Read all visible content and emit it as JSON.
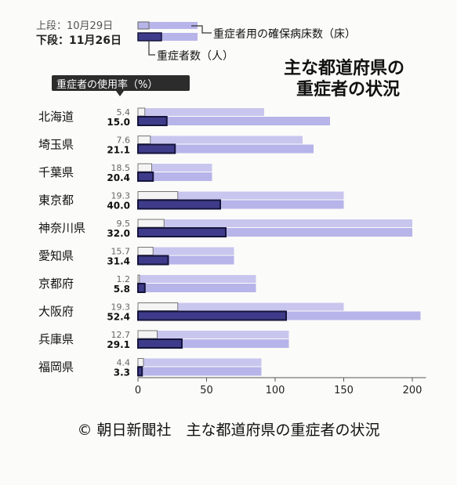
{
  "chart_data": {
    "type": "bar",
    "title_lines": [
      "主な都道府県の",
      "重症者の状況"
    ],
    "legend": {
      "upper_label": "上段：10月29日",
      "lower_label": "下段：11月26日",
      "beds_label": "重症者用の確保病床数（床）",
      "patients_label": "重症者数（人）"
    },
    "usage_rate_header": "重症者の使用率（%）",
    "categories": [
      "北海道",
      "埼玉県",
      "千葉県",
      "東京都",
      "神奈川県",
      "愛知県",
      "京都府",
      "大阪府",
      "兵庫県",
      "福岡県"
    ],
    "usage_rate_oct29": [
      "5.4",
      "7.6",
      "18.5",
      "19.3",
      "9.5",
      "15.7",
      "1.2",
      "19.3",
      "12.7",
      "4.4"
    ],
    "usage_rate_nov26": [
      "15.0",
      "21.1",
      "20.4",
      "40.0",
      "32.0",
      "31.4",
      "5.8",
      "52.4",
      "29.1",
      "3.3"
    ],
    "series": [
      {
        "name": "重症者用の確保病床数（床） 上段：10月29日",
        "values": [
          92,
          120,
          54,
          150,
          200,
          70,
          86,
          150,
          110,
          90
        ]
      },
      {
        "name": "重症者数（人） 上段：10月29日",
        "values": [
          5,
          9,
          10,
          29,
          19,
          11,
          1,
          29,
          14,
          4
        ]
      },
      {
        "name": "重症者用の確保病床数（床） 下段：11月26日",
        "values": [
          140,
          128,
          54,
          150,
          200,
          70,
          86,
          206,
          110,
          90
        ]
      },
      {
        "name": "重症者数（人） 下段：11月26日",
        "values": [
          21,
          27,
          11,
          60,
          64,
          22,
          5,
          108,
          32,
          3
        ]
      }
    ],
    "x_ticks": [
      0,
      50,
      100,
      150,
      200
    ],
    "xlim": [
      0,
      210
    ]
  },
  "caption": "© 朝日新聞社　主な都道府県の重症者の状況",
  "colors": {
    "beds_fill": "#b7b4ea",
    "patients_fill": "#3e3c8a",
    "patients_border": "#15143a",
    "oct_outline": "#777",
    "header_bg": "#2c2c2c"
  }
}
